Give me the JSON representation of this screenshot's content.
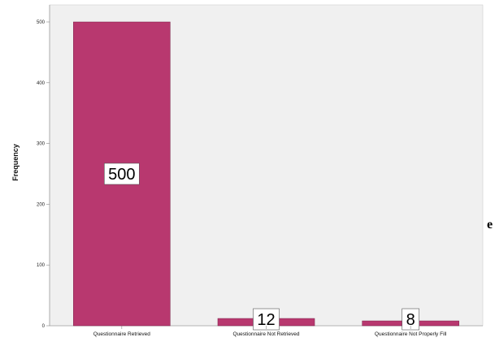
{
  "chart_data": {
    "type": "bar",
    "categories": [
      "Questionnaire Retrieved",
      "Questionnaire Not Retrieved",
      "Questionnaire Not Properly Fill"
    ],
    "values": [
      500,
      12,
      8
    ],
    "data_labels": [
      "500",
      "12",
      "8"
    ],
    "title": "",
    "xlabel": "",
    "ylabel": "Frequency",
    "ylim": [
      0,
      500
    ],
    "yticks": [
      0,
      100,
      200,
      300,
      400,
      500
    ],
    "grid": false,
    "legend": "none",
    "colors": {
      "bar": "#b8386f",
      "bar_edge": "#7a2048",
      "plot_background": "#f0f0f0",
      "label_box": "#ffffff"
    }
  },
  "page": {
    "edge_text": "e"
  }
}
